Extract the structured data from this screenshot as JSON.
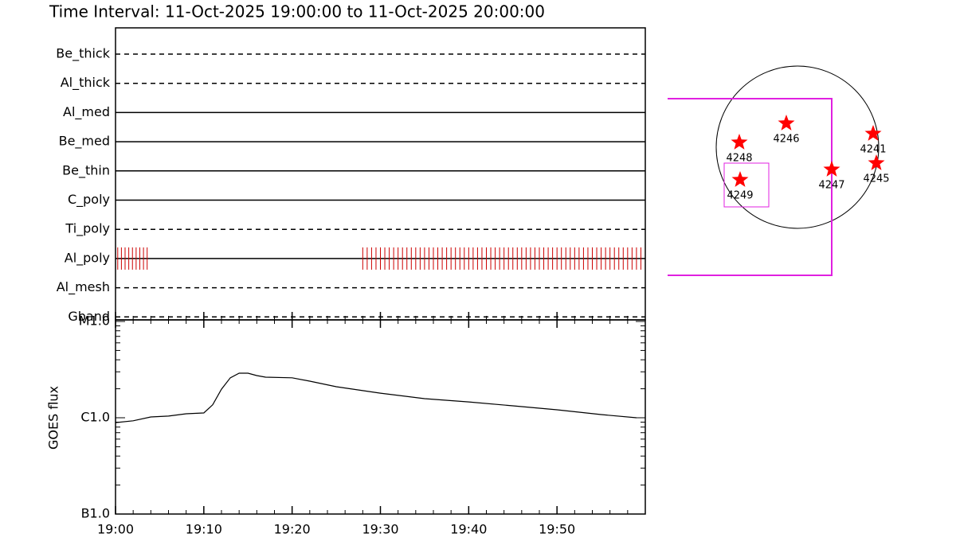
{
  "chart_data": [
    {
      "type": "timeline",
      "title": "Time Interval: 11-Oct-2025 19:00:00 to 11-Oct-2025 20:00:00",
      "categories": [
        "Be_thick",
        "Al_thick",
        "Al_med",
        "Be_med",
        "Be_thin",
        "C_poly",
        "Ti_poly",
        "Al_poly",
        "Al_mesh",
        "Gband"
      ],
      "line_styles": [
        "dashed",
        "dashed",
        "solid",
        "solid",
        "solid",
        "solid",
        "dashed",
        "solid",
        "dashed",
        "dashed"
      ],
      "observations": [
        [],
        [],
        [],
        [],
        [],
        [],
        [],
        [
          "19:00:15",
          "19:00:40",
          "19:01:05",
          "19:01:30",
          "19:01:55",
          "19:02:20",
          "19:02:45",
          "19:03:10",
          "19:03:35",
          "19:28:00",
          "19:28:30",
          "19:29:00",
          "19:29:30",
          "19:30:00",
          "19:30:30",
          "19:31:00",
          "19:31:30",
          "19:32:00",
          "19:32:30",
          "19:33:00",
          "19:33:30",
          "19:34:00",
          "19:34:30",
          "19:35:00",
          "19:35:30",
          "19:36:00",
          "19:36:30",
          "19:37:00",
          "19:37:30",
          "19:38:00",
          "19:38:30",
          "19:39:00",
          "19:39:30",
          "19:40:00",
          "19:40:30",
          "19:41:00",
          "19:41:30",
          "19:42:00",
          "19:42:30",
          "19:43:00",
          "19:43:30",
          "19:44:00",
          "19:44:30",
          "19:45:00",
          "19:45:30",
          "19:46:00",
          "19:46:30",
          "19:47:00",
          "19:47:30",
          "19:48:00",
          "19:48:30",
          "19:49:00",
          "19:49:30",
          "19:50:00",
          "19:50:30",
          "19:51:00",
          "19:51:30",
          "19:52:00",
          "19:52:30",
          "19:53:00",
          "19:53:30",
          "19:54:00",
          "19:54:30",
          "19:55:00",
          "19:55:30",
          "19:56:00",
          "19:56:30",
          "19:57:00",
          "19:57:30",
          "19:58:00",
          "19:58:30",
          "19:59:00",
          "19:59:30"
        ],
        [],
        []
      ],
      "color": "#cc0000",
      "xlim": [
        "19:00",
        "20:00"
      ]
    },
    {
      "type": "line",
      "ylabel": "GOES flux",
      "x": [
        "19:00",
        "19:02",
        "19:04",
        "19:06",
        "19:08",
        "19:10",
        "19:11",
        "19:12",
        "19:13",
        "19:14",
        "19:15",
        "19:16",
        "19:17",
        "19:20",
        "19:22",
        "19:25",
        "19:30",
        "19:35",
        "19:40",
        "19:45",
        "19:50",
        "19:55",
        "19:59"
      ],
      "values": [
        8.9e-07,
        9.3e-07,
        1.02e-06,
        1.04e-06,
        1.1e-06,
        1.12e-06,
        1.36e-06,
        1.98e-06,
        2.6e-06,
        2.9e-06,
        2.9e-06,
        2.74e-06,
        2.64e-06,
        2.6e-06,
        2.4e-06,
        2.1e-06,
        1.8e-06,
        1.58e-06,
        1.46e-06,
        1.33e-06,
        1.21e-06,
        1.08e-06,
        1e-06
      ],
      "color": "#000000",
      "log_y": true,
      "ylim": [
        1e-07,
        1e-05
      ],
      "yticks": [
        {
          "value": 1e-05,
          "label": "M1.0"
        },
        {
          "value": 1e-06,
          "label": "C1.0"
        },
        {
          "value": 1e-07,
          "label": "B1.0"
        }
      ],
      "xlim": [
        "19:00",
        "20:00"
      ],
      "xticks": [
        "19:00",
        "19:10",
        "19:20",
        "19:30",
        "19:40",
        "19:50"
      ],
      "xminor": 5
    }
  ],
  "sun_map": {
    "regions": [
      "4248",
      "4246",
      "4241",
      "4247",
      "4245",
      "4249"
    ]
  }
}
